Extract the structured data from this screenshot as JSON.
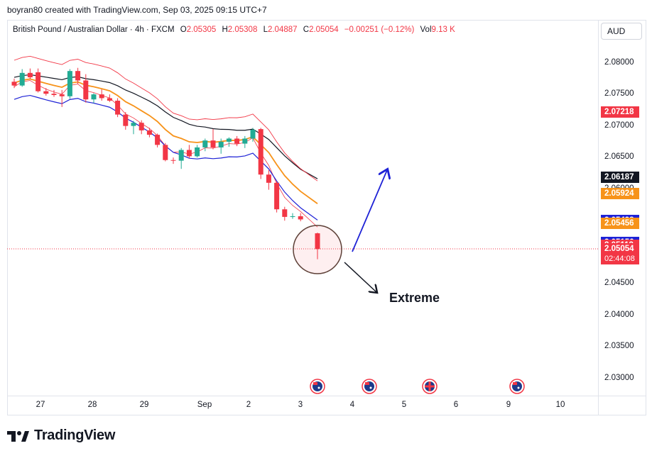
{
  "credit": "boyran80 created with TradingView.com, Sep 03, 2025 09:15 UTC+7",
  "legend": {
    "symbol": "British Pound / Australian Dollar · 4h · FXCM",
    "open_label": "O",
    "open": "2.05305",
    "high_label": "H",
    "high": "2.05308",
    "low_label": "L",
    "low": "2.04887",
    "close_label": "C",
    "close": "2.05054",
    "change": "−0.00251 (−0.12%)",
    "vol_label": "Vol",
    "vol": "9.13 K"
  },
  "currency_button": "AUD",
  "annotation": "Extreme",
  "brand": "TradingView",
  "chart_data": {
    "type": "candlestick",
    "y_axis": {
      "ticks": [
        "2.08000",
        "2.07500",
        "2.07000",
        "2.06500",
        "2.06000",
        "2.05500",
        "2.05000",
        "2.04500",
        "2.04000",
        "2.03500",
        "2.03000"
      ],
      "ylim": [
        2.0273,
        2.0868
      ]
    },
    "x_axis": {
      "ticks": [
        "27",
        "28",
        "29",
        "Sep",
        "2",
        "3",
        "4",
        "5",
        "6",
        "9",
        "10"
      ]
    },
    "price_labels": [
      {
        "value": "2.07218",
        "color": "#f23645"
      },
      {
        "value": "2.06187",
        "color": "#131722"
      },
      {
        "value": "2.05924",
        "color": "#f7931a"
      },
      {
        "value": "2.05498",
        "color": "#1e22d6"
      },
      {
        "value": "2.05456",
        "color": "#f7931a"
      },
      {
        "value": "2.05156",
        "color": "#1e22d6"
      },
      {
        "value": "2.05113",
        "color": "#f23645"
      },
      {
        "value": "2.05054",
        "color": "#f23645",
        "countdown": "02:44:08"
      }
    ],
    "candles": [
      {
        "o": 2.077,
        "h": 2.0775,
        "l": 2.076,
        "c": 2.0764
      },
      {
        "o": 2.0764,
        "h": 2.079,
        "l": 2.0762,
        "c": 2.0784
      },
      {
        "o": 2.0784,
        "h": 2.0791,
        "l": 2.0774,
        "c": 2.0777
      },
      {
        "o": 2.0785,
        "h": 2.0791,
        "l": 2.0753,
        "c": 2.0755
      },
      {
        "o": 2.0755,
        "h": 2.076,
        "l": 2.0748,
        "c": 2.0751
      },
      {
        "o": 2.0751,
        "h": 2.0757,
        "l": 2.0746,
        "c": 2.0749
      },
      {
        "o": 2.075,
        "h": 2.0757,
        "l": 2.073,
        "c": 2.0747
      },
      {
        "o": 2.0747,
        "h": 2.079,
        "l": 2.0743,
        "c": 2.0787
      },
      {
        "o": 2.0787,
        "h": 2.0792,
        "l": 2.0767,
        "c": 2.0772
      },
      {
        "o": 2.0772,
        "h": 2.0782,
        "l": 2.0737,
        "c": 2.0742
      },
      {
        "o": 2.0742,
        "h": 2.0752,
        "l": 2.0736,
        "c": 2.075
      },
      {
        "o": 2.075,
        "h": 2.0758,
        "l": 2.074,
        "c": 2.0744
      },
      {
        "o": 2.0744,
        "h": 2.075,
        "l": 2.0738,
        "c": 2.074
      },
      {
        "o": 2.074,
        "h": 2.0744,
        "l": 2.0714,
        "c": 2.0718
      },
      {
        "o": 2.0718,
        "h": 2.0722,
        "l": 2.0694,
        "c": 2.07
      },
      {
        "o": 2.07,
        "h": 2.0708,
        "l": 2.0687,
        "c": 2.0705
      },
      {
        "o": 2.0705,
        "h": 2.0709,
        "l": 2.0687,
        "c": 2.0693
      },
      {
        "o": 2.0693,
        "h": 2.0697,
        "l": 2.0682,
        "c": 2.0686
      },
      {
        "o": 2.0686,
        "h": 2.0688,
        "l": 2.0666,
        "c": 2.067
      },
      {
        "o": 2.067,
        "h": 2.0673,
        "l": 2.0644,
        "c": 2.0646
      },
      {
        "o": 2.0646,
        "h": 2.065,
        "l": 2.064,
        "c": 2.0645
      },
      {
        "o": 2.0645,
        "h": 2.0665,
        "l": 2.0632,
        "c": 2.0662
      },
      {
        "o": 2.0662,
        "h": 2.067,
        "l": 2.0649,
        "c": 2.0652
      },
      {
        "o": 2.0652,
        "h": 2.067,
        "l": 2.065,
        "c": 2.0666
      },
      {
        "o": 2.0666,
        "h": 2.068,
        "l": 2.066,
        "c": 2.0677
      },
      {
        "o": 2.0677,
        "h": 2.0695,
        "l": 2.0663,
        "c": 2.0666
      },
      {
        "o": 2.0666,
        "h": 2.068,
        "l": 2.0656,
        "c": 2.0675
      },
      {
        "o": 2.0675,
        "h": 2.0682,
        "l": 2.0667,
        "c": 2.068
      },
      {
        "o": 2.068,
        "h": 2.0684,
        "l": 2.0668,
        "c": 2.0672
      },
      {
        "o": 2.0672,
        "h": 2.0684,
        "l": 2.0665,
        "c": 2.068
      },
      {
        "o": 2.068,
        "h": 2.0697,
        "l": 2.0675,
        "c": 2.0694
      },
      {
        "o": 2.0695,
        "h": 2.0697,
        "l": 2.0616,
        "c": 2.0623
      },
      {
        "o": 2.0623,
        "h": 2.063,
        "l": 2.0599,
        "c": 2.061
      },
      {
        "o": 2.061,
        "h": 2.0612,
        "l": 2.0563,
        "c": 2.0568
      },
      {
        "o": 2.0568,
        "h": 2.0572,
        "l": 2.055,
        "c": 2.0556
      },
      {
        "o": 2.0556,
        "h": 2.0562,
        "l": 2.0553,
        "c": 2.0557
      },
      {
        "o": 2.0557,
        "h": 2.0562,
        "l": 2.0549,
        "c": 2.0552
      },
      {
        "o": 2.053,
        "h": 2.0531,
        "l": 2.0489,
        "c": 2.0505
      }
    ]
  },
  "flags": [
    "au-flag-icon",
    "au-flag-icon",
    "uk-flag-icon",
    "au-flag-icon"
  ]
}
